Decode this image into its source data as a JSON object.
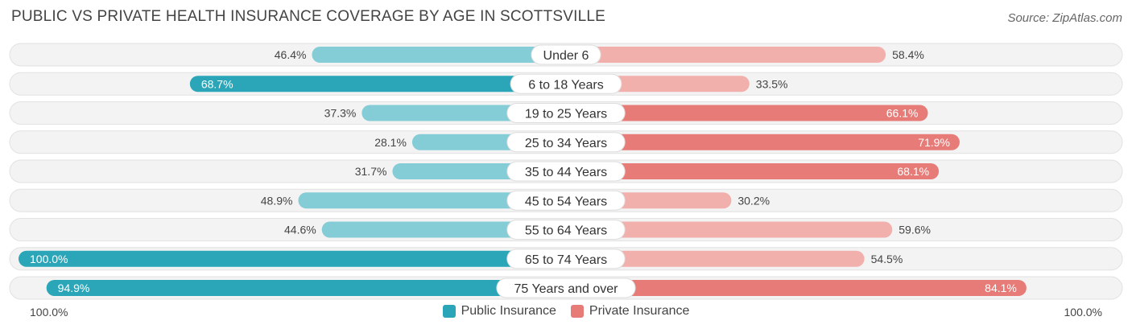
{
  "title": "PUBLIC VS PRIVATE HEALTH INSURANCE COVERAGE BY AGE IN SCOTTSVILLE",
  "source": "Source: ZipAtlas.com",
  "axis": {
    "left_label": "100.0%",
    "right_label": "100.0%"
  },
  "legend": {
    "public_label": "Public Insurance",
    "private_label": "Private Insurance"
  },
  "colors": {
    "public_dark": "#2aa6b8",
    "public_light": "#84ccd6",
    "private_dark": "#e77b77",
    "private_light": "#f2b0ad",
    "row_bg": "#efefef"
  },
  "chart_data": {
    "type": "bar",
    "orientation": "diverging-horizontal",
    "title": "PUBLIC VS PRIVATE HEALTH INSURANCE COVERAGE BY AGE IN SCOTTSVILLE",
    "categories": [
      "Under 6",
      "6 to 18 Years",
      "19 to 25 Years",
      "25 to 34 Years",
      "35 to 44 Years",
      "45 to 54 Years",
      "55 to 64 Years",
      "65 to 74 Years",
      "75 Years and over"
    ],
    "series": [
      {
        "name": "Public Insurance",
        "values": [
          46.4,
          68.7,
          37.3,
          28.1,
          31.7,
          48.9,
          44.6,
          100.0,
          94.9
        ],
        "labels": [
          "46.4%",
          "68.7%",
          "37.3%",
          "28.1%",
          "31.7%",
          "48.9%",
          "44.6%",
          "100.0%",
          "94.9%"
        ]
      },
      {
        "name": "Private Insurance",
        "values": [
          58.4,
          33.5,
          66.1,
          71.9,
          68.1,
          30.2,
          59.6,
          54.5,
          84.1
        ],
        "labels": [
          "58.4%",
          "33.5%",
          "66.1%",
          "71.9%",
          "68.1%",
          "30.2%",
          "59.6%",
          "54.5%",
          "84.1%"
        ]
      }
    ],
    "xlim": [
      -100,
      100
    ],
    "legend_position": "bottom-center"
  }
}
